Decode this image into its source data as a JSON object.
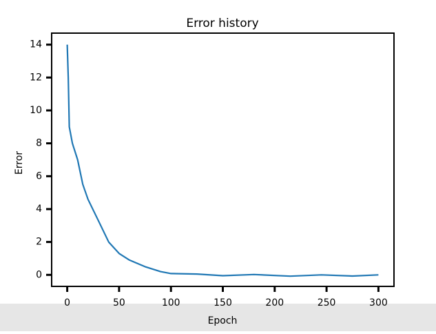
{
  "chart_data": {
    "type": "line",
    "title": "Error history",
    "xlabel": "Epoch",
    "ylabel": "Error",
    "x": [
      0,
      1,
      2,
      5,
      10,
      15,
      20,
      30,
      40,
      50,
      60,
      75,
      90,
      100,
      125,
      150,
      180,
      215,
      245,
      275,
      300
    ],
    "series": [
      {
        "color": "#1f77b4",
        "values": [
          14,
          12,
          9,
          8,
          7,
          5.5,
          4.6,
          3.3,
          2,
          1.3,
          0.9,
          0.5,
          0.2,
          0.08,
          0.05,
          -0.05,
          0.02,
          -0.08,
          0,
          -0.07,
          0
        ]
      }
    ],
    "xlim": [
      -15,
      315
    ],
    "ylim": [
      -0.7,
      14.7
    ],
    "xticks": [
      0,
      50,
      100,
      150,
      200,
      250,
      300
    ],
    "yticks": [
      0,
      2,
      4,
      6,
      8,
      10,
      12,
      14
    ]
  }
}
